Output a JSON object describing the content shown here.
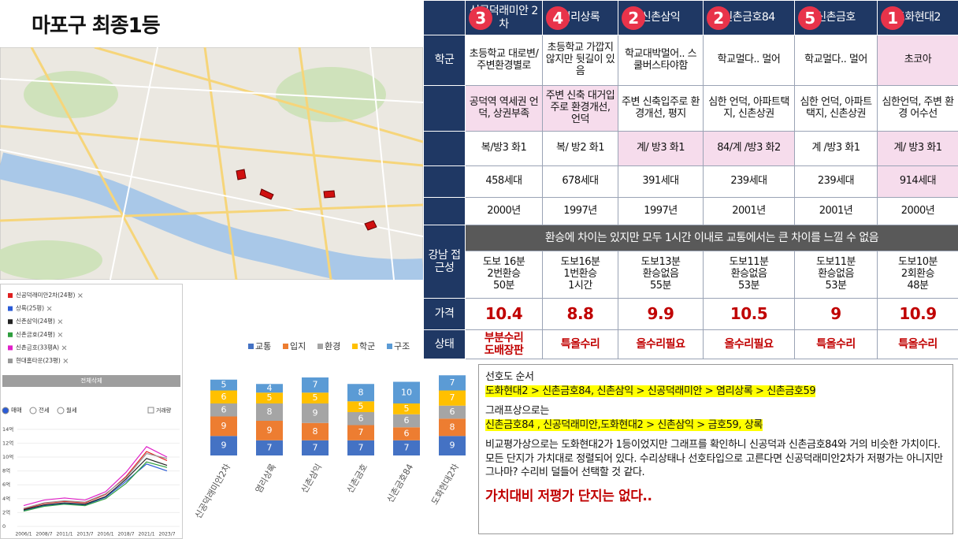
{
  "title": "마포구 최종1등",
  "chart_data": [
    {
      "type": "line",
      "x": [
        "2006/1",
        "2008/7",
        "2011/1",
        "2013/7",
        "2016/1",
        "2018/7",
        "2021/1",
        "2023/7"
      ],
      "series": [
        {
          "name": "신공덕래미안2차(24평)",
          "color": "#e02020",
          "values": [
            2.5,
            3.3,
            3.6,
            3.4,
            4.6,
            7.2,
            10.8,
            9.5
          ]
        },
        {
          "name": "상록(25평)",
          "color": "#2a5bd7",
          "values": [
            2.3,
            3.0,
            3.3,
            3.1,
            4.2,
            6.5,
            9.0,
            8.0
          ]
        },
        {
          "name": "신촌삼익(24평)",
          "color": "#222222",
          "values": [
            2.4,
            3.1,
            3.4,
            3.2,
            4.3,
            6.8,
            9.8,
            8.8
          ]
        },
        {
          "name": "신촌금호(24평)",
          "color": "#2e9e3e",
          "values": [
            2.2,
            2.9,
            3.2,
            3.0,
            4.0,
            6.2,
            9.3,
            8.5
          ]
        },
        {
          "name": "신촌금호(33평A)",
          "color": "#e020c8",
          "values": [
            3.0,
            3.8,
            4.1,
            3.8,
            5.0,
            7.8,
            11.5,
            10.0
          ]
        },
        {
          "name": "현대홈타운(23평)",
          "color": "#999999",
          "values": [
            2.6,
            3.4,
            3.7,
            3.5,
            4.7,
            7.0,
            10.5,
            9.8
          ]
        }
      ],
      "ylim": [
        0,
        14
      ],
      "yticks": [
        {
          "value": 14,
          "label": "14억"
        },
        {
          "value": 12,
          "label": "12억"
        },
        {
          "value": 10,
          "label": "10억"
        },
        {
          "value": 8,
          "label": "8억"
        },
        {
          "value": 6,
          "label": "6억"
        },
        {
          "value": 4,
          "label": "4억"
        },
        {
          "value": 2,
          "label": "2억"
        },
        0
      ],
      "clear_button": "전체삭제",
      "modes": [
        "매매",
        "전세",
        "월세"
      ],
      "volume_toggle": "거래량"
    },
    {
      "type": "bar",
      "stacked": true,
      "categories": [
        "신공덕래미안2차",
        "염리상록",
        "신촌삼익",
        "신촌금호",
        "신촌금호84",
        "도화현대2차"
      ],
      "series": [
        {
          "name": "교통",
          "color": "#4472c4",
          "values": [
            9,
            7,
            7,
            7,
            7,
            9
          ]
        },
        {
          "name": "입지",
          "color": "#ed7d31",
          "values": [
            9,
            9,
            8,
            7,
            6,
            8
          ]
        },
        {
          "name": "환경",
          "color": "#a5a5a5",
          "values": [
            6,
            8,
            9,
            6,
            6,
            6
          ]
        },
        {
          "name": "학군",
          "color": "#ffc000",
          "values": [
            6,
            5,
            5,
            5,
            5,
            7
          ]
        },
        {
          "name": "구조",
          "color": "#5b9bd5",
          "values": [
            5,
            4,
            7,
            8,
            10,
            7
          ]
        }
      ],
      "ylim": [
        0,
        40
      ]
    }
  ],
  "table": {
    "headers": [
      "신공덕래미안 2차",
      "염리상록",
      "신촌삼익",
      "신촌금호84",
      "신촌금호",
      "도화현대2"
    ],
    "ranks": [
      "3",
      "4",
      "2",
      "2",
      "5",
      "1"
    ],
    "rows": [
      {
        "label": "학군",
        "cells": [
          "초등학교 대로변/주변환경별로",
          "초등학교 가깝지 않지만 뒷길이 있음",
          "학교대박멀어.. 스쿨버스타야함",
          "학교멀다.. 멀어",
          "학교멀다.. 멀어",
          "초코아"
        ]
      },
      {
        "cells": [
          "공덕역 역세권 언덕, 상권부족",
          "주변 신축 대거입주로 환경개선, 언덕",
          "주변 신축입주로 환경개선, 평지",
          "심한 언덕, 아파트택지, 신촌상권",
          "심한 언덕, 아파트택지, 신촌상권",
          "심한언덕, 주변 환경 어수선"
        ]
      },
      {
        "cells": [
          "복/방3 화1",
          "복/ 방2 화1",
          "계/ 방3 화1",
          "84/계 /방3 화2",
          "계 /방3 화1",
          "계/ 방3 화1"
        ]
      },
      {
        "cells": [
          "458세대",
          "678세대",
          "391세대",
          "239세대",
          "239세대",
          "914세대"
        ]
      },
      {
        "cells": [
          "2000년",
          "1997년",
          "1997년",
          "2001년",
          "2001년",
          "2000년"
        ]
      },
      {
        "label": "강남 접근성",
        "banner": "환승에 차이는 있지만 모두 1시간 이내로 교통에서는 큰 차이를 느낄 수 없음",
        "cells": [
          "도보 16분\n2번환승\n50분",
          "도보16분\n1번환승\n1시간",
          "도보13분\n환승없음\n55분",
          "도보11분\n환승없음\n53분",
          "도보11분\n환승없음\n53분",
          "도보10분\n2회환승\n48분"
        ]
      },
      {
        "label": "가격",
        "cells": [
          10.4,
          8.8,
          9.9,
          10.5,
          9,
          10.9
        ]
      },
      {
        "label": "상태",
        "cells": [
          "부분수리\n도배장판",
          "특올수리",
          "올수리필요",
          "올수리필요",
          "특올수리",
          "특올수리"
        ]
      }
    ]
  },
  "notes": {
    "heading1": "선호도 순서",
    "order1": "도화현대2 > 신촌금호84, 신촌삼익 > 신공덕래미안 > 염리상록 > 신촌금호59",
    "heading2": "그래프상으로는",
    "order2": "신촌금호84 , 신공덕래미안,도화현대2 > 신촌삼익 > 금호59, 상록",
    "body": "비교평가상으로는 도화현대2가 1등이었지만 그래프를 확인하니 신공덕과 신촌금호84와 거의 비슷한 가치이다. 모든 단지가 가치대로 정렬되어 있다. 수리상태나 선호타입으로 고른다면 신공덕래미안2차가 저평가는 아니지만 그나마? 수리비 덜들어 선택할 것 같다.",
    "conclusion": "가치대비 저평가 단지는 없다.."
  }
}
